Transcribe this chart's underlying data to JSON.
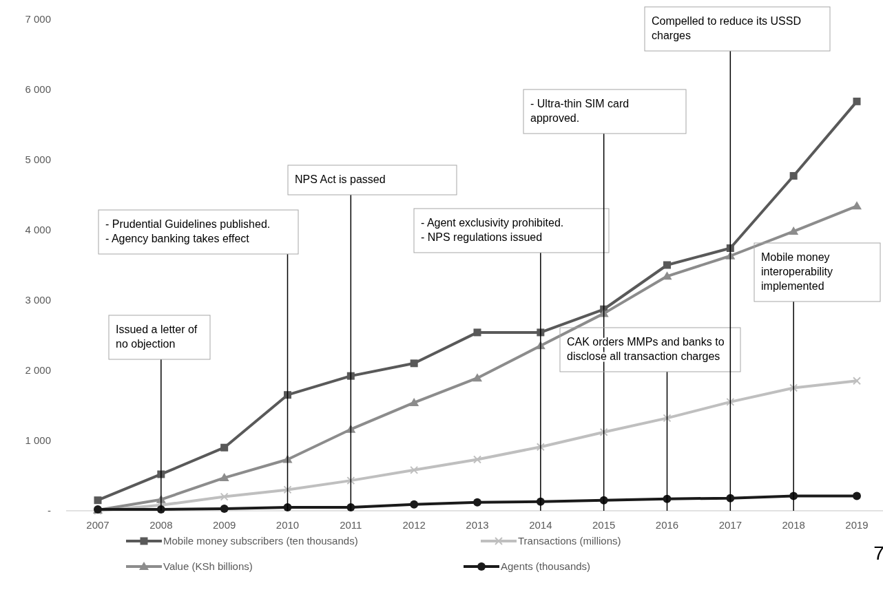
{
  "chart_data": {
    "type": "line",
    "categories": [
      "2007",
      "2008",
      "2009",
      "2010",
      "2011",
      "2012",
      "2013",
      "2014",
      "2015",
      "2016",
      "2017",
      "2018",
      "2019"
    ],
    "series": [
      {
        "name": "Mobile money subscribers (ten thousands)",
        "color": "#595959",
        "marker": "square",
        "values": [
          150,
          520,
          900,
          1650,
          1920,
          2100,
          2540,
          2540,
          2870,
          3500,
          3740,
          4770,
          5830
        ]
      },
      {
        "name": "Transactions (millions)",
        "color": "#bfbfbf",
        "marker": "cross",
        "values": [
          0,
          80,
          200,
          300,
          430,
          580,
          730,
          910,
          1120,
          1320,
          1550,
          1750,
          1850
        ]
      },
      {
        "name": "Value (KSh billions)",
        "color": "#8c8c8c",
        "marker": "triangle",
        "values": [
          10,
          160,
          470,
          730,
          1160,
          1540,
          1890,
          2350,
          2810,
          3340,
          3630,
          3980,
          4340
        ]
      },
      {
        "name": "Agents (thousands)",
        "color": "#1a1a1a",
        "marker": "circle",
        "values": [
          20,
          20,
          30,
          50,
          50,
          90,
          120,
          130,
          150,
          170,
          180,
          210,
          210
        ]
      }
    ],
    "ylim": [
      0,
      7000
    ],
    "yticks": [
      {
        "value": 0,
        "label": "-"
      },
      {
        "value": 1000,
        "label": "1 000"
      },
      {
        "value": 2000,
        "label": "2 000"
      },
      {
        "value": 3000,
        "label": "3 000"
      },
      {
        "value": 4000,
        "label": "4 000"
      },
      {
        "value": 5000,
        "label": "5 000"
      },
      {
        "value": 6000,
        "label": "6 000"
      },
      {
        "value": 7000,
        "label": "7 000"
      }
    ],
    "legend": "bottom",
    "ref_lines": [
      {
        "axis": "x",
        "value": "2008",
        "label": "Issued a letter of no objection",
        "color": "#000000"
      },
      {
        "axis": "x",
        "value": "2010",
        "label": "- Prudential Guidelines published.\n- Agency banking takes effect",
        "color": "#000000"
      },
      {
        "axis": "x",
        "value": "2011",
        "label": "NPS Act is passed",
        "color": "#000000"
      },
      {
        "axis": "x",
        "value": "2014",
        "label": "- Agent exclusivity prohibited.\n- NPS regulations issued",
        "color": "#000000"
      },
      {
        "axis": "x",
        "value": "2015",
        "label": "- Ultra-thin SIM card approved.",
        "color": "#000000"
      },
      {
        "axis": "x",
        "value": "2016",
        "label": "CAK orders MMPs and banks to disclose all transaction charges",
        "color": "#000000"
      },
      {
        "axis": "x",
        "value": "2017",
        "label": "Compelled to reduce its USSD charges",
        "color": "#000000"
      },
      {
        "axis": "x",
        "value": "2018",
        "label": "Mobile money interoperability implemented",
        "color": "#000000"
      }
    ],
    "annotations": [
      "7"
    ]
  }
}
